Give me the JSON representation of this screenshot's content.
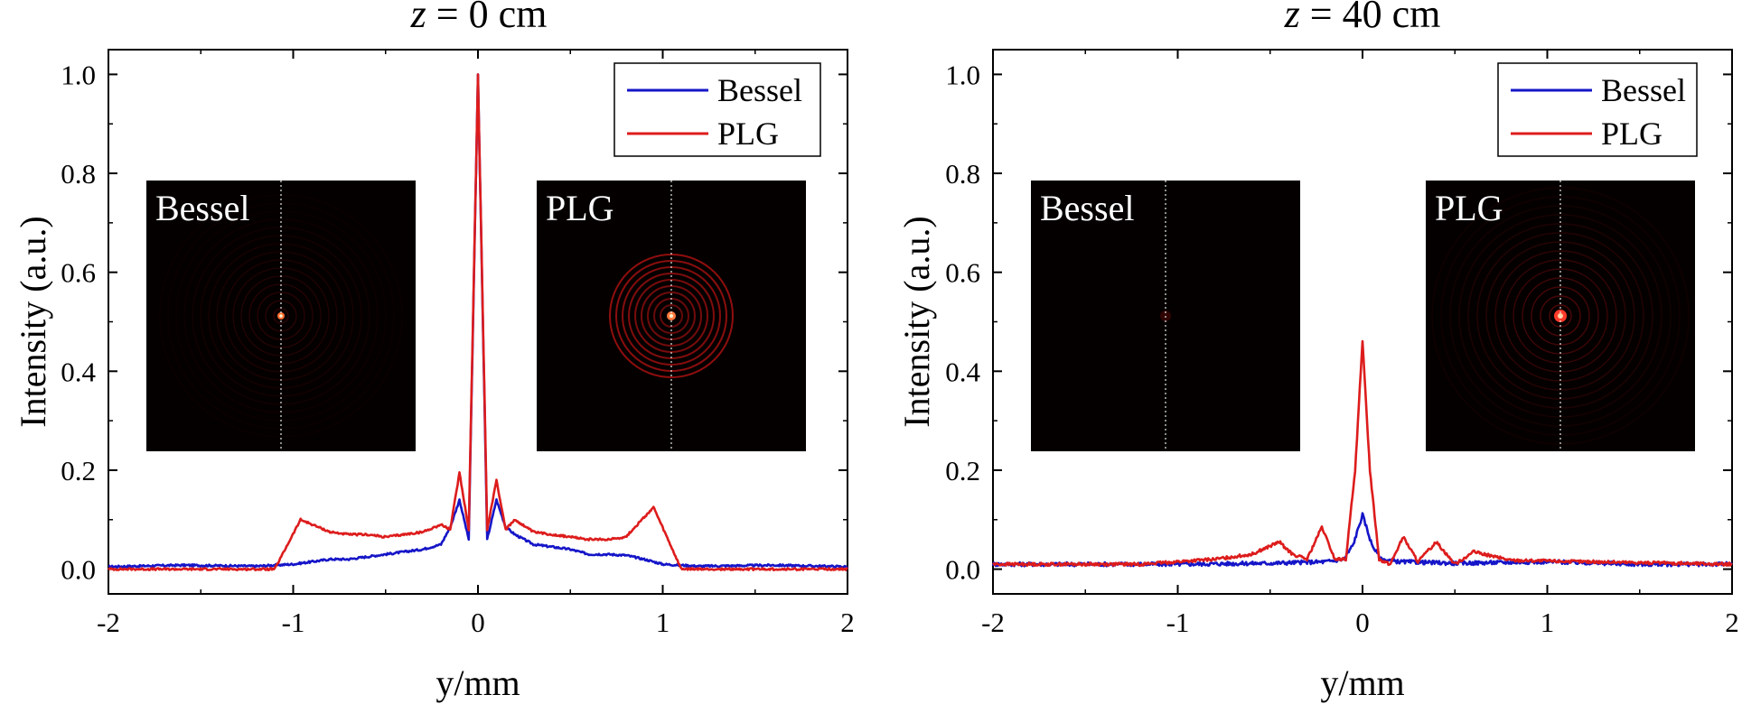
{
  "colors": {
    "bessel": "#1515c8",
    "plg": "#dd1c1c",
    "inset_background": "#050000",
    "ring": "#a01010"
  },
  "chart_data": [
    {
      "type": "line",
      "title_var": "z",
      "title_value": "= 0 cm",
      "xlabel": "y/mm",
      "ylabel": "Intensity (a.u.)",
      "xlim": [
        -2,
        2
      ],
      "ylim": [
        -0.05,
        1.05
      ],
      "xticks": [
        "-2",
        "-1",
        "0",
        "1",
        "2"
      ],
      "yticks": [
        "0.0",
        "0.2",
        "0.4",
        "0.6",
        "0.8",
        "1.0"
      ],
      "grid": false,
      "legend_position": "top-right",
      "series": [
        {
          "name": "Bessel",
          "color_key": "bessel",
          "x": [
            -2.0,
            -1.6,
            -1.2,
            -1.0,
            -0.9,
            -0.8,
            -0.7,
            -0.6,
            -0.5,
            -0.4,
            -0.3,
            -0.2,
            -0.15,
            -0.1,
            -0.05,
            0.0,
            0.05,
            0.1,
            0.15,
            0.2,
            0.3,
            0.4,
            0.5,
            0.6,
            0.7,
            0.8,
            0.9,
            1.0,
            1.2,
            1.6,
            2.0
          ],
          "y": [
            0.005,
            0.008,
            0.006,
            0.01,
            0.015,
            0.02,
            0.02,
            0.025,
            0.03,
            0.035,
            0.04,
            0.05,
            0.085,
            0.14,
            0.06,
            1.0,
            0.06,
            0.14,
            0.085,
            0.07,
            0.05,
            0.045,
            0.04,
            0.03,
            0.03,
            0.028,
            0.02,
            0.01,
            0.006,
            0.008,
            0.005
          ]
        },
        {
          "name": "PLG",
          "color_key": "plg",
          "x": [
            -2.0,
            -1.5,
            -1.1,
            -0.96,
            -0.8,
            -0.7,
            -0.6,
            -0.5,
            -0.4,
            -0.3,
            -0.2,
            -0.15,
            -0.1,
            -0.05,
            0.0,
            0.05,
            0.1,
            0.15,
            0.2,
            0.3,
            0.4,
            0.5,
            0.6,
            0.7,
            0.8,
            0.95,
            1.1,
            1.5,
            2.0
          ],
          "y": [
            0.0,
            0.0,
            0.0,
            0.1,
            0.075,
            0.07,
            0.07,
            0.065,
            0.07,
            0.075,
            0.09,
            0.08,
            0.195,
            0.08,
            1.0,
            0.08,
            0.18,
            0.08,
            0.1,
            0.075,
            0.07,
            0.065,
            0.06,
            0.06,
            0.065,
            0.125,
            0.0,
            0.0,
            0.0
          ]
        }
      ],
      "insets": [
        {
          "label": "Bessel",
          "pattern": "bessel-scattered"
        },
        {
          "label": "PLG",
          "pattern": "plg-rings"
        }
      ]
    },
    {
      "type": "line",
      "title_var": "z",
      "title_value": "= 40 cm",
      "xlabel": "y/mm",
      "ylabel": "Intensity (a.u.)",
      "xlim": [
        -2,
        2
      ],
      "ylim": [
        -0.05,
        1.05
      ],
      "xticks": [
        "-2",
        "-1",
        "0",
        "1",
        "2"
      ],
      "yticks": [
        "0.0",
        "0.2",
        "0.4",
        "0.6",
        "0.8",
        "1.0"
      ],
      "grid": false,
      "legend_position": "top-right",
      "series": [
        {
          "name": "Bessel",
          "color_key": "bessel",
          "x": [
            -2.0,
            -1.5,
            -1.0,
            -0.5,
            -0.2,
            -0.1,
            -0.05,
            0.0,
            0.05,
            0.1,
            0.2,
            0.5,
            1.0,
            1.5,
            2.0
          ],
          "y": [
            0.01,
            0.01,
            0.01,
            0.012,
            0.015,
            0.02,
            0.05,
            0.11,
            0.05,
            0.02,
            0.015,
            0.012,
            0.015,
            0.01,
            0.01
          ],
          "jitter": 0.004
        },
        {
          "name": "PLG",
          "color_key": "plg",
          "x": [
            -2.0,
            -1.2,
            -0.8,
            -0.6,
            -0.45,
            -0.38,
            -0.3,
            -0.22,
            -0.15,
            -0.09,
            -0.04,
            0.0,
            0.04,
            0.09,
            0.15,
            0.22,
            0.3,
            0.4,
            0.5,
            0.6,
            0.8,
            1.2,
            2.0
          ],
          "y": [
            0.01,
            0.01,
            0.02,
            0.03,
            0.055,
            0.03,
            0.02,
            0.085,
            0.02,
            0.02,
            0.2,
            0.46,
            0.2,
            0.02,
            0.01,
            0.065,
            0.015,
            0.055,
            0.01,
            0.035,
            0.018,
            0.015,
            0.01
          ],
          "jitter": 0.003
        }
      ],
      "insets": [
        {
          "label": "Bessel",
          "pattern": "faint"
        },
        {
          "label": "PLG",
          "pattern": "plg-center"
        }
      ]
    }
  ]
}
